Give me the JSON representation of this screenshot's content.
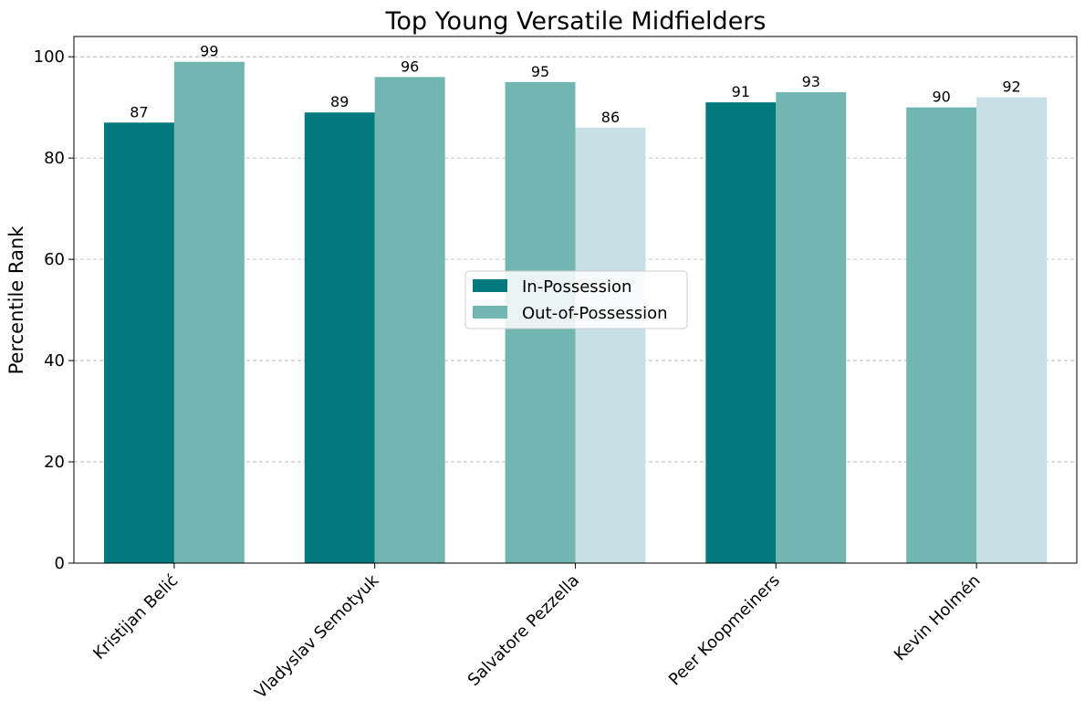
{
  "chart_data": {
    "type": "bar",
    "title": "Top Young Versatile Midfielders",
    "xlabel": "",
    "ylabel": "Percentile Rank",
    "ylim": [
      0,
      104
    ],
    "yticks": [
      0,
      20,
      40,
      60,
      80,
      100
    ],
    "grid": "y-dashed",
    "legend_position": "center",
    "categories": [
      "Kristijan Belić",
      "Vladyslav Semotyuk",
      "Salvatore Pezzella",
      "Peer Koopmeiners",
      "Kevin Holmén"
    ],
    "series": [
      {
        "name": "In-Possession",
        "values": [
          87,
          89,
          95,
          91,
          90
        ]
      },
      {
        "name": "Out-of-Possession",
        "values": [
          99,
          96,
          86,
          93,
          92
        ]
      }
    ],
    "bar_colors": [
      [
        "#007a7d",
        "#72b6b1"
      ],
      [
        "#007a7d",
        "#72b6b1"
      ],
      [
        "#72b6b1",
        "#c6e0e5"
      ],
      [
        "#007a7d",
        "#72b6b1"
      ],
      [
        "#72b6b1",
        "#c6e0e5"
      ]
    ],
    "legend_colors": [
      "#007a7d",
      "#72b6b1"
    ]
  }
}
